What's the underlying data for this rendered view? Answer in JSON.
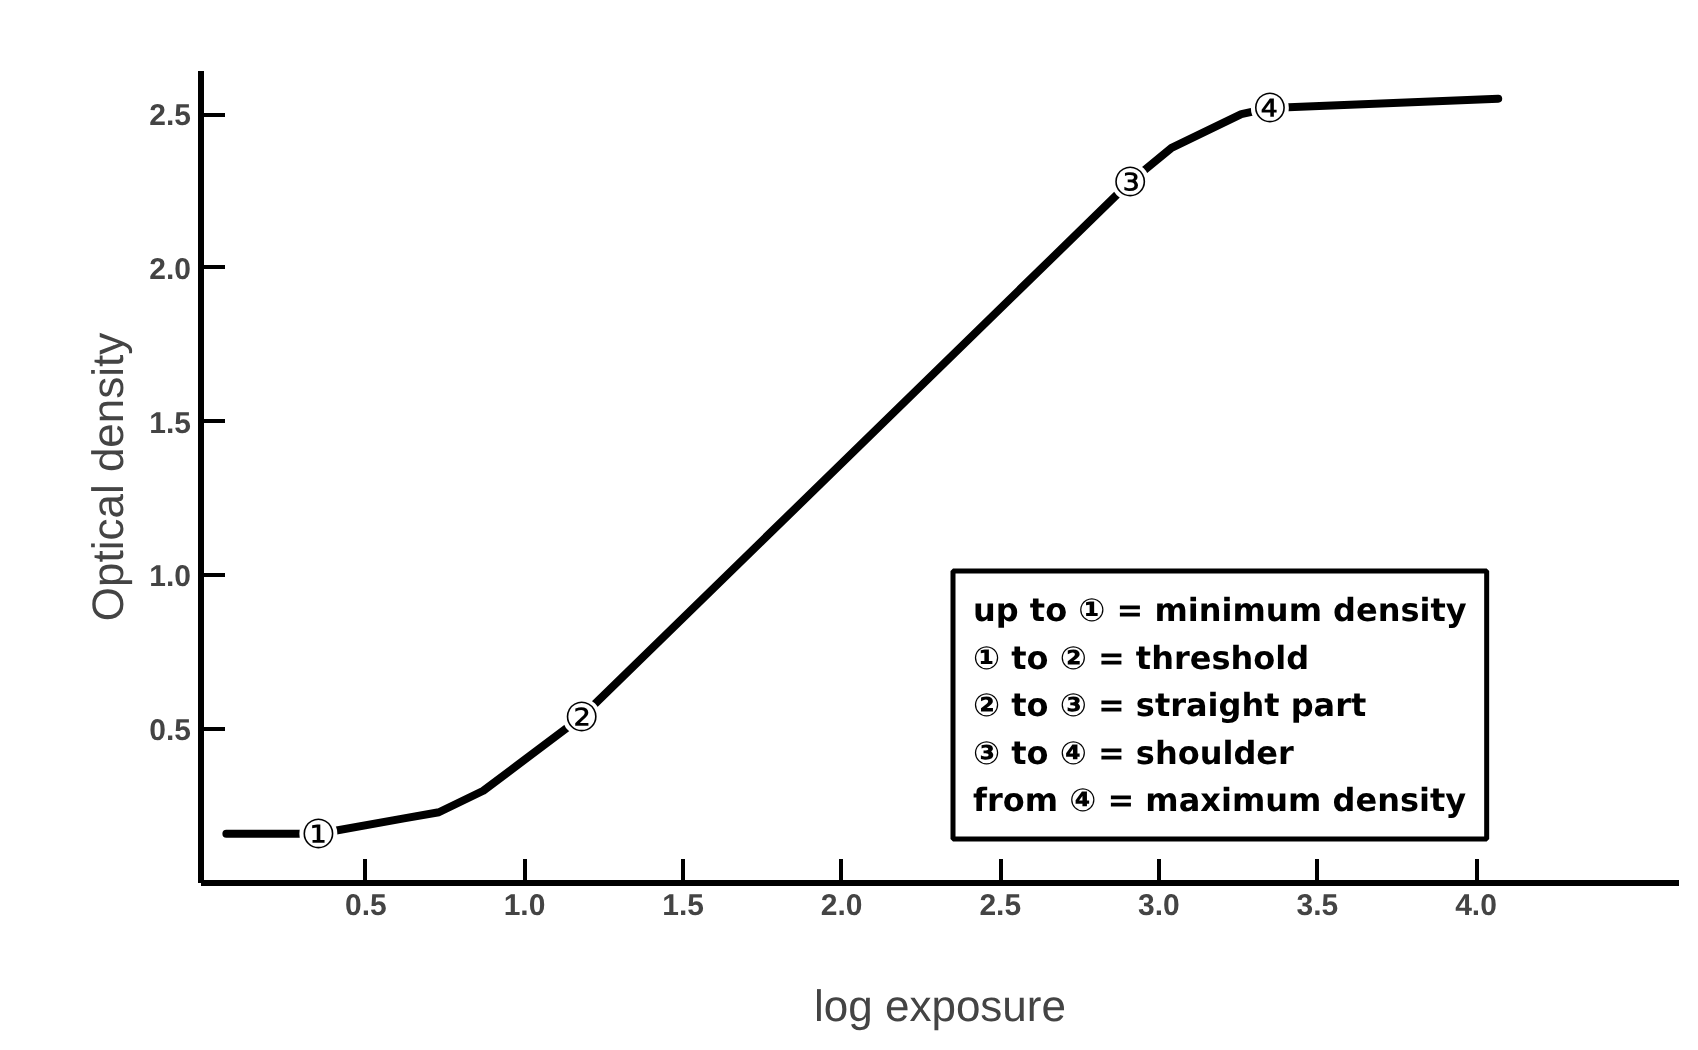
{
  "chart_data": {
    "type": "line",
    "xlabel": "log exposure",
    "ylabel": "Optical density",
    "x": [
      0.06,
      0.35,
      0.62,
      0.73,
      0.87,
      1.18,
      2.91,
      3.04,
      3.26,
      3.35,
      4.07
    ],
    "series": [
      {
        "color": "#000000",
        "values": [
          0.16,
          0.16,
          0.21,
          0.23,
          0.3,
          0.54,
          2.28,
          2.39,
          2.5,
          2.52,
          2.55
        ]
      }
    ],
    "xlim": [
      -0.02,
      4.64
    ],
    "ylim": [
      0,
      2.64
    ],
    "xticks": [
      0.5,
      {
        "value": 1,
        "label": "1.0"
      },
      1.5,
      {
        "value": 2,
        "label": "2.0"
      },
      2.5,
      {
        "value": 3,
        "label": "3.0"
      },
      3.5,
      {
        "value": 4,
        "label": "4.0"
      }
    ],
    "yticks": [
      0.5,
      {
        "value": 1,
        "label": "1.0"
      },
      1.5,
      {
        "value": 2,
        "label": "2.0"
      },
      2.5
    ],
    "grid": false,
    "marker": "none",
    "line_style": "solid",
    "annotations": [
      {
        "text": "①",
        "x": 0.35,
        "y": 0.16
      },
      {
        "text": "②",
        "x": 1.18,
        "y": 0.54
      },
      {
        "text": "③",
        "x": 2.91,
        "y": 2.28
      },
      {
        "text": "④",
        "x": 3.35,
        "y": 2.52
      },
      "up to ① = minimum density",
      "① to ② = threshold",
      "② to ③ = straight part",
      "③ to ④ = shoulder",
      "from ④ = maximum density"
    ]
  }
}
